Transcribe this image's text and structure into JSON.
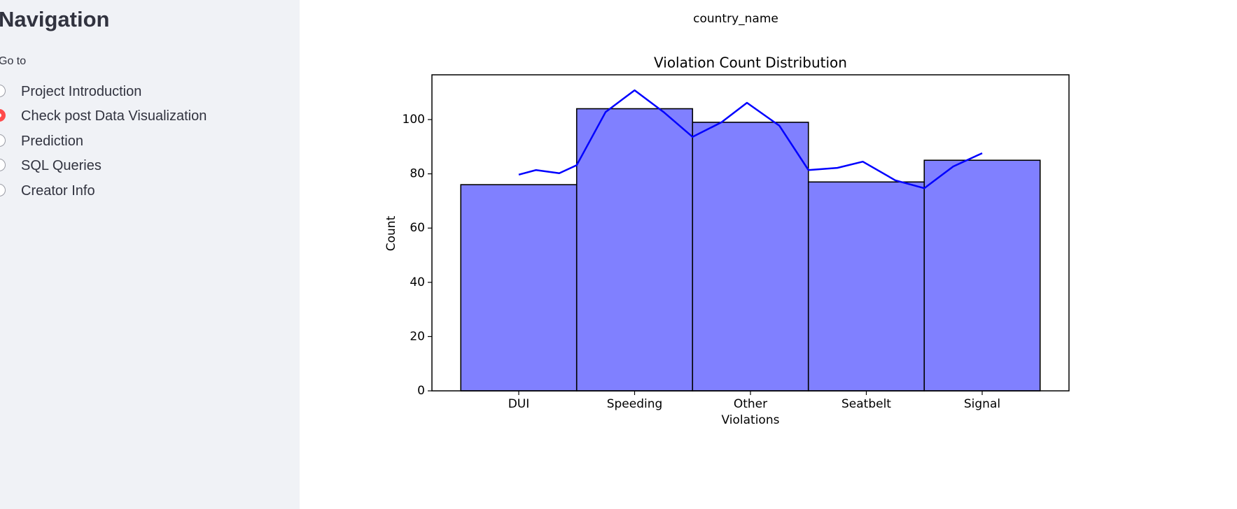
{
  "sidebar": {
    "title": "Navigation",
    "label": "Go to",
    "options": [
      "Project Introduction",
      "Check post Data Visualization",
      "Prediction",
      "SQL Queries",
      "Creator Info"
    ],
    "selected": 1
  },
  "caption": "country_name",
  "chart_data": {
    "type": "bar",
    "title": "Violation Count Distribution",
    "x_label": "Violations",
    "y_label": "Count",
    "categories": [
      "DUI",
      "Speeding",
      "Other",
      "Seatbelt",
      "Signal"
    ],
    "values": [
      76,
      104,
      99,
      77,
      85
    ],
    "color": "#8080ff",
    "edgecolor": "#000000",
    "ylim": [
      0,
      116.5
    ],
    "yticks": [
      0,
      20,
      40,
      60,
      80,
      100
    ],
    "kde": {
      "color": "#0000ff",
      "x": [
        0,
        0.15,
        0.35,
        0.5,
        0.75,
        1.0,
        1.25,
        1.5,
        1.75,
        1.97,
        2.25,
        2.5,
        2.75,
        2.97,
        3.25,
        3.5,
        3.75,
        4.0
      ],
      "values": [
        79.7,
        81.4,
        80.2,
        83.2,
        102.8,
        110.8,
        102.8,
        93.6,
        99,
        106.2,
        97.7,
        81.4,
        82.2,
        84.5,
        77.6,
        74.7,
        82.7,
        87.6
      ]
    }
  }
}
